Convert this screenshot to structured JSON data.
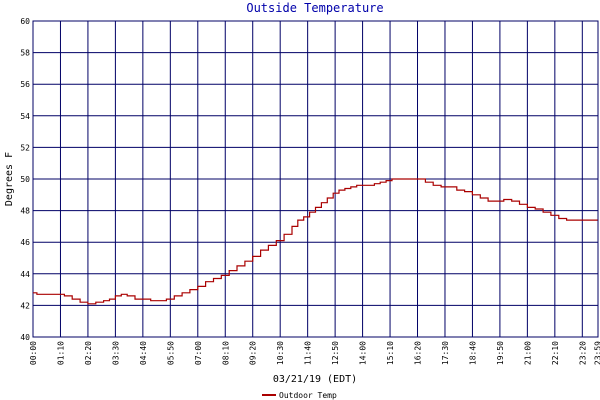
{
  "chart_data": {
    "type": "line",
    "title": "Outside Temperature",
    "xlabel": "03/21/19 (EDT)",
    "ylabel": "Degrees F",
    "ylim": [
      40,
      60
    ],
    "yticks": [
      40,
      42,
      44,
      46,
      48,
      50,
      52,
      54,
      56,
      58,
      60
    ],
    "xticks": [
      "00:00",
      "01:10",
      "02:20",
      "03:30",
      "04:40",
      "05:50",
      "07:00",
      "08:10",
      "09:20",
      "10:30",
      "11:40",
      "12:50",
      "14:00",
      "15:10",
      "16:20",
      "17:30",
      "18:40",
      "19:50",
      "21:00",
      "22:10",
      "23:20"
    ],
    "xlim_minutes": [
      0,
      1440
    ],
    "end_tick_label": "23:59",
    "grid": true,
    "legend_position": "bottom-center",
    "colors": {
      "line": "#aa0000",
      "grid": "#000066",
      "title": "#0000aa"
    },
    "series": [
      {
        "name": "Outdoor Temp",
        "x": [
          "00:00",
          "00:10",
          "00:30",
          "01:00",
          "01:20",
          "01:40",
          "02:00",
          "02:20",
          "02:40",
          "03:00",
          "03:15",
          "03:30",
          "03:45",
          "04:00",
          "04:20",
          "04:40",
          "05:00",
          "05:20",
          "05:40",
          "06:00",
          "06:20",
          "06:40",
          "07:00",
          "07:20",
          "07:40",
          "08:00",
          "08:20",
          "08:40",
          "09:00",
          "09:20",
          "09:40",
          "10:00",
          "10:20",
          "10:40",
          "11:00",
          "11:15",
          "11:30",
          "11:45",
          "12:00",
          "12:15",
          "12:30",
          "12:45",
          "13:00",
          "13:15",
          "13:30",
          "13:45",
          "14:00",
          "14:15",
          "14:30",
          "14:45",
          "15:00",
          "15:15",
          "15:30",
          "15:45",
          "16:00",
          "16:20",
          "16:40",
          "17:00",
          "17:20",
          "17:40",
          "18:00",
          "18:20",
          "18:40",
          "19:00",
          "19:20",
          "19:40",
          "20:00",
          "20:20",
          "20:40",
          "21:00",
          "21:20",
          "21:40",
          "22:00",
          "22:20",
          "22:40",
          "23:00",
          "23:20",
          "23:59"
        ],
        "y": [
          42.8,
          42.7,
          42.7,
          42.7,
          42.6,
          42.4,
          42.2,
          42.1,
          42.2,
          42.3,
          42.4,
          42.6,
          42.7,
          42.6,
          42.4,
          42.4,
          42.3,
          42.3,
          42.4,
          42.6,
          42.8,
          43.0,
          43.2,
          43.5,
          43.7,
          43.9,
          44.2,
          44.5,
          44.8,
          45.1,
          45.5,
          45.8,
          46.1,
          46.5,
          47.0,
          47.4,
          47.6,
          47.9,
          48.2,
          48.5,
          48.8,
          49.1,
          49.3,
          49.4,
          49.5,
          49.6,
          49.6,
          49.6,
          49.7,
          49.8,
          49.9,
          50.0,
          50.0,
          50.0,
          50.0,
          50.0,
          49.8,
          49.6,
          49.5,
          49.5,
          49.3,
          49.2,
          49.0,
          48.8,
          48.6,
          48.6,
          48.7,
          48.6,
          48.4,
          48.2,
          48.1,
          47.9,
          47.7,
          47.5,
          47.4,
          47.4,
          47.4,
          47.4
        ]
      }
    ]
  }
}
